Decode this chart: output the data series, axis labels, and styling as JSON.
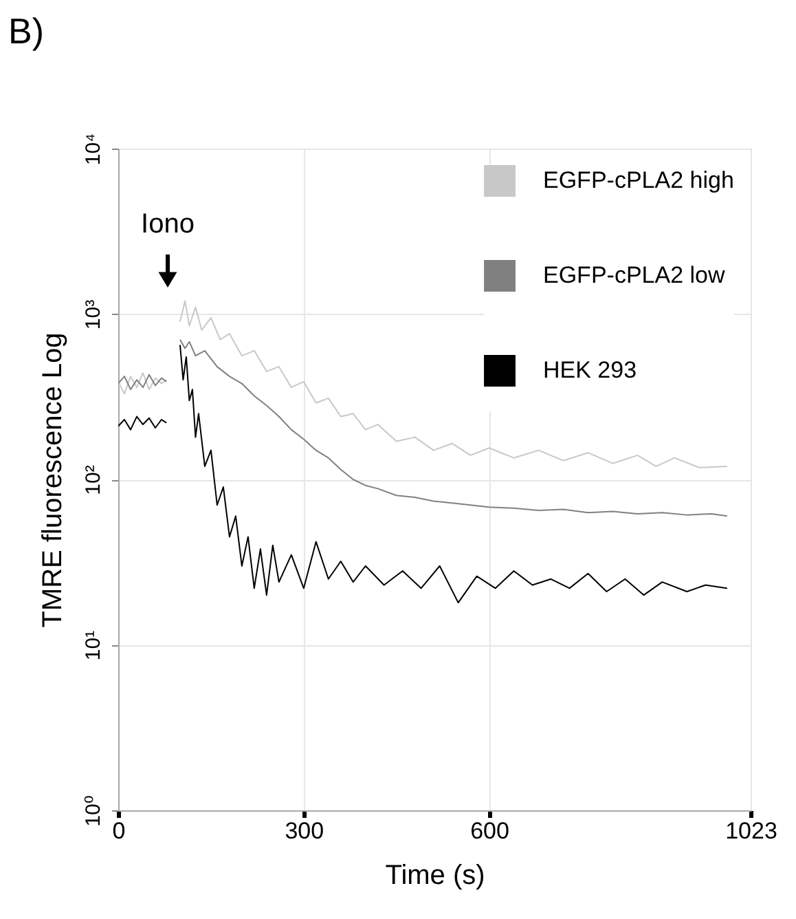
{
  "chart_data": {
    "type": "line",
    "title": "B)",
    "xlabel": "Time (s)",
    "ylabel": "TMRE fluorescence Log",
    "log": "y",
    "grid": true,
    "legend": "top right",
    "xlim": [
      0,
      1023
    ],
    "xticks": [
      0,
      300,
      600,
      1023
    ],
    "ylim": [
      1,
      10000
    ],
    "yticks": [
      {
        "value": 1,
        "label": "10⁰"
      },
      {
        "value": 10,
        "label": "10¹"
      },
      {
        "value": 100,
        "label": "10²"
      },
      {
        "value": 1000,
        "label": "10³"
      },
      {
        "value": 10000,
        "label": "10⁴"
      }
    ],
    "annotations": [
      "Iono"
    ],
    "series": [
      {
        "name": "EGFP-cPLA2 high",
        "color": "#c8c8c8",
        "x": [
          0,
          10,
          20,
          30,
          40,
          50,
          60,
          70,
          78,
          89,
          100,
          108,
          115,
          125,
          135,
          150,
          165,
          180,
          200,
          220,
          240,
          260,
          280,
          300,
          320,
          340,
          360,
          380,
          400,
          420,
          450,
          480,
          510,
          540,
          570,
          600,
          640,
          680,
          720,
          760,
          800,
          840,
          870,
          900,
          940,
          985
        ],
        "values": [
          390,
          330,
          420,
          360,
          440,
          350,
          410,
          380,
          400,
          null,
          900,
          1200,
          850,
          1100,
          800,
          950,
          700,
          760,
          560,
          600,
          450,
          480,
          360,
          390,
          290,
          310,
          240,
          250,
          200,
          215,
          170,
          180,
          150,
          165,
          140,
          155,
          135,
          150,
          130,
          145,
          125,
          140,
          120,
          135,
          118,
          120
        ]
      },
      {
        "name": "EGFP-cPLA2 low",
        "color": "#808080",
        "x": [
          0,
          10,
          20,
          30,
          40,
          50,
          60,
          70,
          78,
          89,
          100,
          108,
          115,
          125,
          140,
          160,
          180,
          200,
          220,
          240,
          260,
          280,
          300,
          320,
          340,
          360,
          380,
          400,
          420,
          450,
          480,
          510,
          540,
          570,
          600,
          640,
          680,
          720,
          760,
          800,
          840,
          880,
          920,
          960,
          985
        ],
        "values": [
          380,
          420,
          350,
          400,
          360,
          430,
          370,
          410,
          390,
          null,
          700,
          620,
          680,
          560,
          600,
          480,
          420,
          380,
          320,
          280,
          240,
          200,
          175,
          150,
          135,
          115,
          100,
          92,
          88,
          80,
          78,
          74,
          72,
          70,
          68,
          67,
          65,
          66,
          63,
          64,
          62,
          63,
          61,
          62,
          60
        ]
      },
      {
        "name": "HEK 293",
        "color": "#000000",
        "x": [
          0,
          10,
          20,
          30,
          40,
          50,
          60,
          70,
          78,
          89,
          100,
          105,
          110,
          115,
          120,
          125,
          130,
          140,
          150,
          160,
          170,
          180,
          190,
          200,
          210,
          220,
          230,
          240,
          250,
          260,
          280,
          300,
          320,
          340,
          360,
          380,
          400,
          430,
          460,
          490,
          520,
          550,
          580,
          610,
          640,
          670,
          700,
          730,
          760,
          790,
          820,
          850,
          880,
          920,
          950,
          985
        ],
        "values": [
          210,
          230,
          200,
          240,
          215,
          235,
          205,
          230,
          220,
          null,
          650,
          400,
          550,
          300,
          350,
          180,
          250,
          120,
          150,
          70,
          90,
          45,
          60,
          30,
          45,
          22,
          38,
          20,
          40,
          24,
          35,
          22,
          42,
          25,
          32,
          24,
          30,
          23,
          28,
          22,
          30,
          18,
          26,
          22,
          28,
          23,
          25,
          22,
          27,
          21,
          25,
          20,
          24,
          21,
          23,
          22
        ]
      }
    ]
  }
}
